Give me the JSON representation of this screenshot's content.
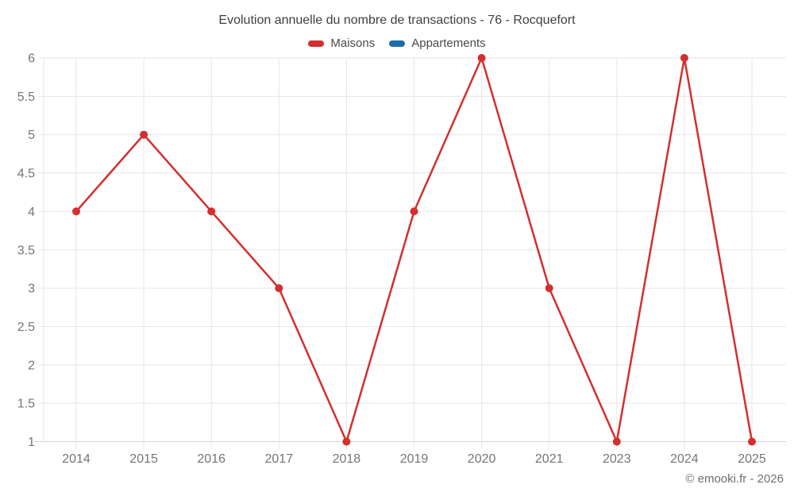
{
  "page": {
    "copyright": "© emooki.fr - 2026"
  },
  "chart_data": {
    "type": "line",
    "title": "Evolution annuelle du nombre de transactions - 76 - Rocquefort",
    "categories": [
      "2014",
      "2015",
      "2016",
      "2017",
      "2018",
      "2019",
      "2020",
      "2021",
      "2023",
      "2024",
      "2025"
    ],
    "series": [
      {
        "name": "Maisons",
        "color": "#d32f2f",
        "values": [
          4,
          5,
          4,
          3,
          1,
          4,
          6,
          3,
          1,
          6,
          1
        ]
      },
      {
        "name": "Appartements",
        "color": "#1b6ca8",
        "values": []
      }
    ],
    "xlabel": "",
    "ylabel": "",
    "ylim": [
      1,
      6
    ],
    "ytick_step": 0.5,
    "grid": true,
    "legend_position": "top",
    "colors": {
      "gridline": "#e6e6e6",
      "axis_line": "#d4d4d4",
      "tick_label": "#757575",
      "title_text": "#404040"
    }
  }
}
